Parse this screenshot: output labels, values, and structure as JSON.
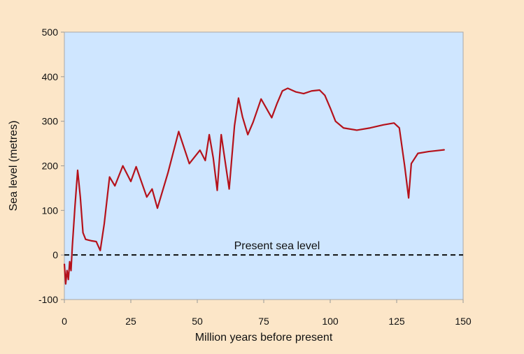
{
  "chart_data": {
    "type": "line",
    "title": "",
    "xlabel": "Million years before present",
    "ylabel": "Sea level (metres)",
    "xlim": [
      0,
      150
    ],
    "ylim": [
      -100,
      500
    ],
    "xticks": [
      0,
      25,
      50,
      75,
      100,
      125,
      150
    ],
    "yticks": [
      -100,
      0,
      100,
      200,
      300,
      400,
      500
    ],
    "grid": false,
    "legend": "none",
    "colors": {
      "page_background": "#fce6c8",
      "plot_background": "#cfe6ff",
      "series_line": "#b5121b",
      "reference_line": "#111111",
      "axis": "#999999"
    },
    "reference_line": {
      "y": 0,
      "style": "dashed",
      "label": "Present sea level"
    },
    "series": [
      {
        "points": [
          [
            0,
            -20
          ],
          [
            0.5,
            -65
          ],
          [
            1,
            -35
          ],
          [
            1.5,
            -55
          ],
          [
            2,
            -15
          ],
          [
            2.5,
            -35
          ],
          [
            3,
            20
          ],
          [
            4,
            110
          ],
          [
            5,
            190
          ],
          [
            6,
            130
          ],
          [
            7,
            50
          ],
          [
            8,
            35
          ],
          [
            10,
            32
          ],
          [
            12,
            30
          ],
          [
            13.5,
            10
          ],
          [
            15,
            70
          ],
          [
            17,
            175
          ],
          [
            19,
            155
          ],
          [
            22,
            200
          ],
          [
            25,
            165
          ],
          [
            27,
            198
          ],
          [
            31,
            130
          ],
          [
            33,
            148
          ],
          [
            35,
            105
          ],
          [
            39,
            185
          ],
          [
            43,
            277
          ],
          [
            47,
            205
          ],
          [
            51,
            235
          ],
          [
            53,
            212
          ],
          [
            54.5,
            270
          ],
          [
            56,
            218
          ],
          [
            57.5,
            145
          ],
          [
            59,
            270
          ],
          [
            62,
            148
          ],
          [
            64,
            290
          ],
          [
            65.5,
            352
          ],
          [
            67,
            310
          ],
          [
            69,
            270
          ],
          [
            71,
            298
          ],
          [
            74,
            350
          ],
          [
            78,
            308
          ],
          [
            80,
            340
          ],
          [
            82,
            368
          ],
          [
            84,
            374
          ],
          [
            87,
            366
          ],
          [
            90,
            362
          ],
          [
            93,
            368
          ],
          [
            96,
            370
          ],
          [
            98,
            358
          ],
          [
            100,
            330
          ],
          [
            102,
            300
          ],
          [
            105,
            285
          ],
          [
            110,
            280
          ],
          [
            115,
            285
          ],
          [
            120,
            292
          ],
          [
            124,
            296
          ],
          [
            126,
            285
          ],
          [
            128,
            200
          ],
          [
            129.5,
            128
          ],
          [
            130.5,
            205
          ],
          [
            133,
            228
          ],
          [
            137,
            232
          ],
          [
            140,
            234
          ],
          [
            143,
            236
          ]
        ]
      }
    ]
  }
}
